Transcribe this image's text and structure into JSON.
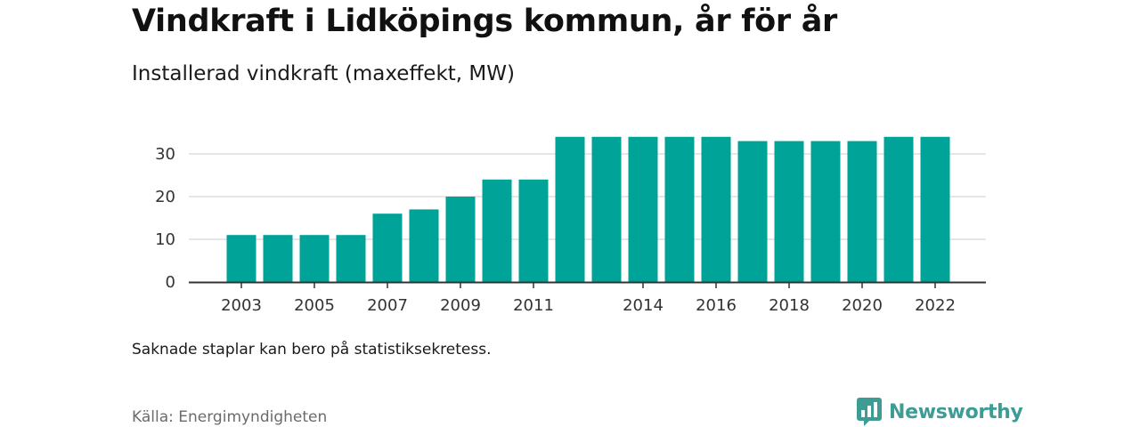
{
  "title": "Vindkraft i Lidköpings kommun, år för år",
  "subtitle": "Installerad vindkraft (maxeffekt, MW)",
  "note": "Saknade staplar kan bero på statistiksekretess.",
  "source": "Källa: Energimyndigheten",
  "brand": {
    "name": "Newsworthy",
    "icon": "newsworthy-logo-icon",
    "color": "#3d9c94"
  },
  "colors": {
    "bar": "#00a398",
    "grid": "#dddddd",
    "axis": "#333333"
  },
  "chart_data": {
    "type": "bar",
    "title": "Vindkraft i Lidköpings kommun, år för år",
    "subtitle": "Installerad vindkraft (maxeffekt, MW)",
    "xlabel": "",
    "ylabel": "",
    "categories": [
      2003,
      2004,
      2005,
      2006,
      2007,
      2008,
      2009,
      2010,
      2011,
      2012,
      2013,
      2014,
      2015,
      2016,
      2017,
      2018,
      2019,
      2020,
      2021,
      2022
    ],
    "values": [
      11,
      11,
      11,
      11,
      16,
      17,
      20,
      24,
      24,
      34,
      34,
      34,
      34,
      34,
      33,
      33,
      33,
      33,
      34,
      34
    ],
    "x_tick_labels": [
      "2003",
      "2005",
      "2007",
      "2009",
      "2011",
      "2014",
      "2016",
      "2018",
      "2020",
      "2022"
    ],
    "y_ticks": [
      0,
      10,
      20,
      30
    ],
    "ylim": [
      0,
      37
    ],
    "grid": true,
    "legend": "none"
  }
}
